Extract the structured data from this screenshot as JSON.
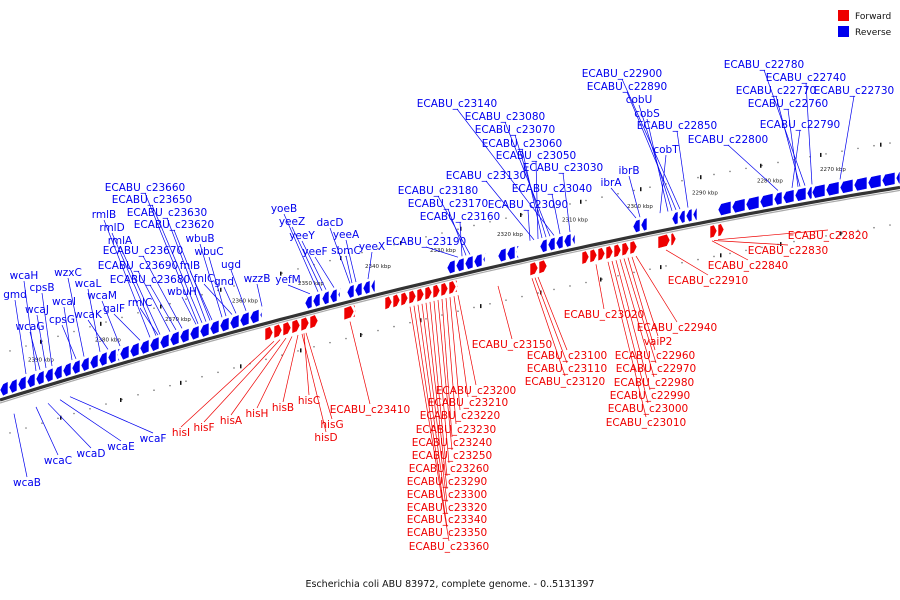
{
  "caption": "Escherichia coli ABU 83972, complete genome. - 0..5131397",
  "legend": [
    {
      "label": "Forward",
      "color": "#ee0000"
    },
    {
      "label": "Reverse",
      "color": "#0000ee"
    }
  ],
  "colors": {
    "forward": "#ee0000",
    "reverse": "#0000ee",
    "backbone": "#555555"
  },
  "ticks": [
    "2390 kbp",
    "2380 kbp",
    "2370 kbp",
    "2360 kbp",
    "2350 kbp",
    "2340 kbp",
    "2330 kbp",
    "2320 kbp",
    "2310 kbp",
    "2300 kbp",
    "2290 kbp",
    "2280 kbp",
    "2270 kbp"
  ],
  "reverse_labels": [
    "ECABU_c22780",
    "ECABU_c22740",
    "ECABU_c22770",
    "ECABU_c22730",
    "ECABU_c22760",
    "ECABU_c22790",
    "ECABU_c22800",
    "ECABU_c22900",
    "ECABU_c22890",
    "cobU",
    "cobS",
    "ECABU_c22850",
    "cobT",
    "ECABU_c23140",
    "ECABU_c23080",
    "ECABU_c23070",
    "ECABU_c23060",
    "ECABU_c23050",
    "ECABU_c23030",
    "ECABU_c23130",
    "ECABU_c23040",
    "ECABU_c23180",
    "ECABU_c23170",
    "ECABU_c23090",
    "ECABU_c23160",
    "ibrB",
    "ibrA",
    "ECABU_c23190",
    "yoeB",
    "yeeZ",
    "yeeY",
    "dacD",
    "yeeA",
    "yeeF",
    "sbmC",
    "yeeX",
    "yefM",
    "ECABU_c23660",
    "ECABU_c23650",
    "ECABU_c23630",
    "rmlB",
    "ECABU_c23620",
    "rmlD",
    "rmlA",
    "wbuB",
    "ECABU_c23670",
    "wbuC",
    "ECABU_c23690",
    "ugd",
    "fnlB",
    "ECABU_c23680",
    "fnlC",
    "gnd",
    "wzzB",
    "wzxC",
    "wcaH",
    "wcaL",
    "cpsB",
    "wcaM",
    "gmd",
    "wcaI",
    "galF",
    "rmlC",
    "wbuH",
    "wcaJ",
    "cpsG",
    "wcaK",
    "wcaG"
  ],
  "reverse_bottom_labels": [
    "wcaF",
    "wcaE",
    "wcaD",
    "wcaC",
    "wcaB"
  ],
  "forward_labels": [
    "ECABU_c22820",
    "ECABU_c22830",
    "ECABU_c22840",
    "ECABU_c22910",
    "ECABU_c22940",
    "vaiP2",
    "ECABU_c22960",
    "ECABU_c22970",
    "ECABU_c22980",
    "ECABU_c22990",
    "ECABU_c23000",
    "ECABU_c23010",
    "ECABU_c23020",
    "ECABU_c23150",
    "ECABU_c23100",
    "ECABU_c23110",
    "ECABU_c23120",
    "ECABU_c23200",
    "ECABU_c23210",
    "ECABU_c23220",
    "ECABU_c23230",
    "ECABU_c23240",
    "ECABU_c23250",
    "ECABU_c23260",
    "ECABU_c23290",
    "ECABU_c23300",
    "ECABU_c23320",
    "ECABU_c23340",
    "ECABU_c23350",
    "ECABU_c23360",
    "ECABU_c23410",
    "hisI",
    "hisF",
    "hisA",
    "hisH",
    "hisB",
    "hisC",
    "hisG",
    "hisD"
  ]
}
